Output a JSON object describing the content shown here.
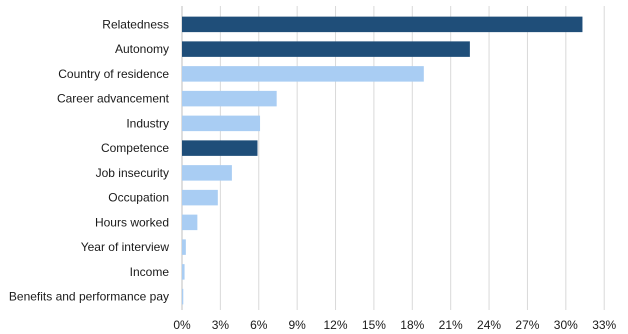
{
  "chart_data": {
    "type": "bar",
    "orientation": "horizontal",
    "title": "",
    "xlabel": "",
    "ylabel": "",
    "xlim": [
      0,
      34
    ],
    "grid": true,
    "legend": "none",
    "tick_values": [
      0,
      3,
      6,
      9,
      12,
      15,
      18,
      21,
      24,
      27,
      30,
      33
    ],
    "tick_labels": [
      "0%",
      "3%",
      "6%",
      "9%",
      "12%",
      "15%",
      "18%",
      "21%",
      "24%",
      "27%",
      "30%",
      "33%"
    ],
    "categories": [
      "Relatedness",
      "Autonomy",
      "Country of residence",
      "Career advancement",
      "Industry",
      "Competence",
      "Job insecurity",
      "Occupation",
      "Hours worked",
      "Year of interview",
      "Income",
      "Benefits and performance pay"
    ],
    "values": [
      31.3,
      22.5,
      18.9,
      7.4,
      6.1,
      5.9,
      3.9,
      2.8,
      1.2,
      0.3,
      0.2,
      0.1
    ],
    "bar_groups": [
      "dark",
      "dark",
      "light",
      "light",
      "light",
      "dark",
      "light",
      "light",
      "light",
      "light",
      "light",
      "light"
    ],
    "colors": {
      "dark": "#1f4e79",
      "light": "#a9cdf3"
    }
  }
}
